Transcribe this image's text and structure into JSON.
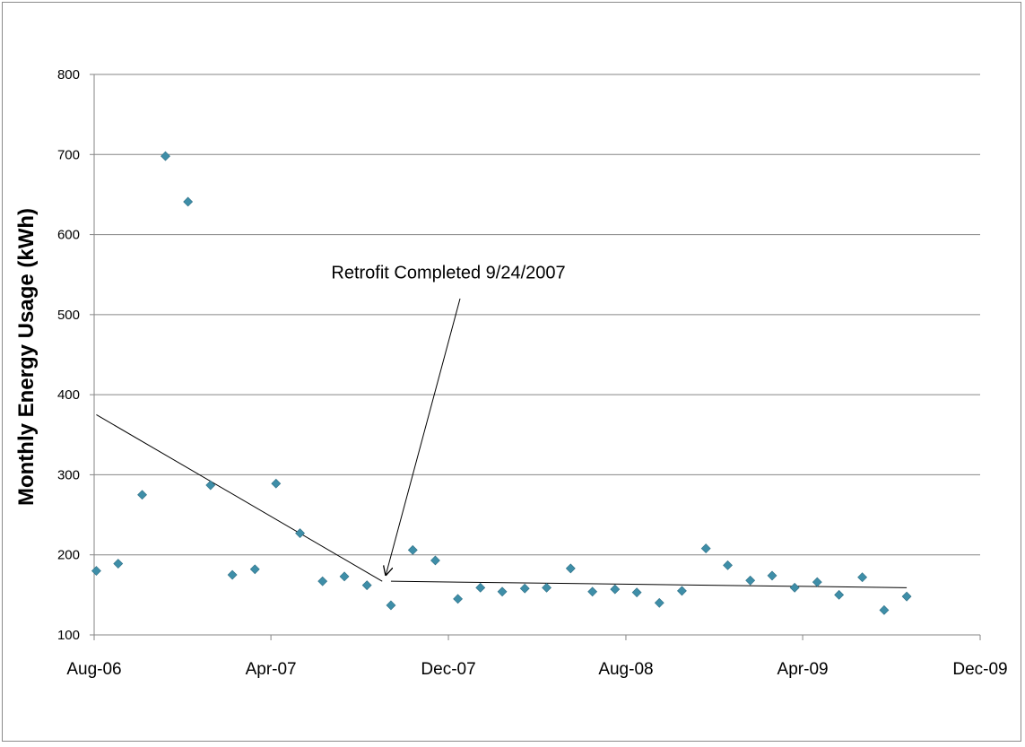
{
  "chart_data": {
    "type": "scatter",
    "title": "",
    "xlabel": "",
    "ylabel": "Monthly Energy Usage (kWh)",
    "ylim": [
      100,
      800
    ],
    "xlim": [
      "2006-08-01",
      "2009-12-01"
    ],
    "yticks": [
      100,
      200,
      300,
      400,
      500,
      600,
      700,
      800
    ],
    "xticks": [
      {
        "date": "2006-08-01",
        "label": "Aug-06"
      },
      {
        "date": "2007-04-01",
        "label": "Apr-07"
      },
      {
        "date": "2007-12-01",
        "label": "Dec-07"
      },
      {
        "date": "2008-08-01",
        "label": "Aug-08"
      },
      {
        "date": "2009-04-01",
        "label": "Apr-09"
      },
      {
        "date": "2009-12-01",
        "label": "Dec-09"
      }
    ],
    "grid": {
      "horizontal": true,
      "vertical": false
    },
    "marker_color": "#3E8EA8",
    "series": [
      {
        "points": [
          {
            "x": "2006-08-04",
            "y": 180
          },
          {
            "x": "2006-09-03",
            "y": 189
          },
          {
            "x": "2006-10-06",
            "y": 275
          },
          {
            "x": "2006-11-07",
            "y": 698
          },
          {
            "x": "2006-12-08",
            "y": 641
          },
          {
            "x": "2007-01-08",
            "y": 287
          },
          {
            "x": "2007-02-07",
            "y": 175
          },
          {
            "x": "2007-03-10",
            "y": 182
          },
          {
            "x": "2007-04-08",
            "y": 289
          },
          {
            "x": "2007-05-11",
            "y": 227
          },
          {
            "x": "2007-06-11",
            "y": 167
          },
          {
            "x": "2007-07-11",
            "y": 173
          },
          {
            "x": "2007-08-11",
            "y": 162
          },
          {
            "x": "2007-09-13",
            "y": 137
          },
          {
            "x": "2007-10-13",
            "y": 206
          },
          {
            "x": "2007-11-13",
            "y": 193
          },
          {
            "x": "2007-12-14",
            "y": 145
          },
          {
            "x": "2008-01-14",
            "y": 159
          },
          {
            "x": "2008-02-13",
            "y": 154
          },
          {
            "x": "2008-03-15",
            "y": 158
          },
          {
            "x": "2008-04-14",
            "y": 159
          },
          {
            "x": "2008-05-17",
            "y": 183
          },
          {
            "x": "2008-06-16",
            "y": 154
          },
          {
            "x": "2008-07-17",
            "y": 157
          },
          {
            "x": "2008-08-16",
            "y": 153
          },
          {
            "x": "2008-09-16",
            "y": 140
          },
          {
            "x": "2008-10-17",
            "y": 155
          },
          {
            "x": "2008-11-19",
            "y": 208
          },
          {
            "x": "2008-12-19",
            "y": 187
          },
          {
            "x": "2009-01-19",
            "y": 168
          },
          {
            "x": "2009-02-18",
            "y": 174
          },
          {
            "x": "2009-03-21",
            "y": 159
          },
          {
            "x": "2009-04-21",
            "y": 166
          },
          {
            "x": "2009-05-21",
            "y": 150
          },
          {
            "x": "2009-06-22",
            "y": 172
          },
          {
            "x": "2009-07-22",
            "y": 131
          },
          {
            "x": "2009-08-22",
            "y": 148
          }
        ]
      }
    ],
    "trendlines": [
      {
        "x": [
          "2006-08-04",
          "2007-09-01"
        ],
        "y": [
          375,
          167
        ]
      },
      {
        "x": [
          "2007-09-13",
          "2009-08-22"
        ],
        "y": [
          167,
          159
        ]
      }
    ],
    "annotations": [
      {
        "text": "Retrofit Completed 9/24/2007",
        "text_x": "2007-12-01",
        "text_y": 545,
        "arrow_from": {
          "x": "2007-12-17",
          "y": 520
        },
        "arrow_to": {
          "x": "2007-09-06",
          "y": 175
        }
      }
    ]
  }
}
